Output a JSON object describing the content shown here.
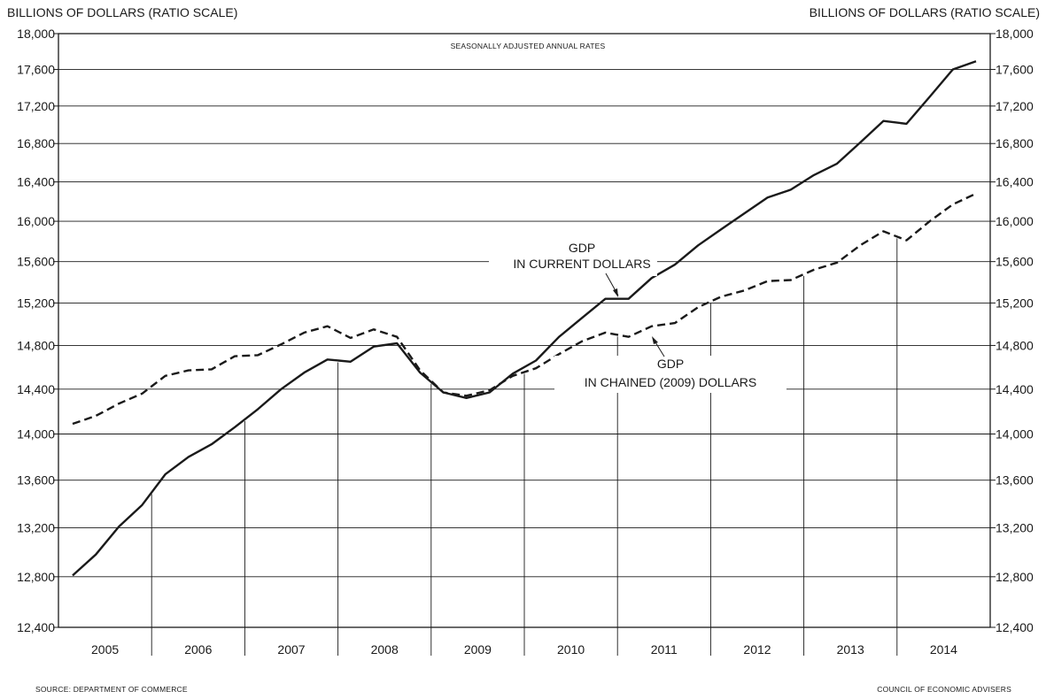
{
  "chart_data": {
    "type": "line",
    "ylabel_left": "BILLIONS OF DOLLARS (RATIO SCALE)",
    "ylabel_right": "BILLIONS OF DOLLARS (RATIO SCALE)",
    "subtitle": "SEASONALLY ADJUSTED ANNUAL RATES",
    "y_scale": "log",
    "ylim": [
      12400,
      18000
    ],
    "y_ticks": [
      12400,
      12800,
      13200,
      13600,
      14000,
      14400,
      14800,
      15200,
      15600,
      16000,
      16400,
      16800,
      17200,
      17600,
      18000
    ],
    "y_tick_labels": [
      "12,400",
      "12,800",
      "13,200",
      "13,600",
      "14,000",
      "14,400",
      "14,800",
      "15,200",
      "15,600",
      "16,000",
      "16,400",
      "16,800",
      "17,200",
      "17,600",
      "18,000"
    ],
    "categories": [
      "2005",
      "2006",
      "2007",
      "2008",
      "2009",
      "2010",
      "2011",
      "2012",
      "2013",
      "2014"
    ],
    "x": [
      "2005 Q1",
      "2005 Q2",
      "2005 Q3",
      "2005 Q4",
      "2006 Q1",
      "2006 Q2",
      "2006 Q3",
      "2006 Q4",
      "2007 Q1",
      "2007 Q2",
      "2007 Q3",
      "2007 Q4",
      "2008 Q1",
      "2008 Q2",
      "2008 Q3",
      "2008 Q4",
      "2009 Q1",
      "2009 Q2",
      "2009 Q3",
      "2009 Q4",
      "2010 Q1",
      "2010 Q2",
      "2010 Q3",
      "2010 Q4",
      "2011 Q1",
      "2011 Q2",
      "2011 Q3",
      "2011 Q4",
      "2012 Q1",
      "2012 Q2",
      "2012 Q3",
      "2012 Q4",
      "2013 Q1",
      "2013 Q2",
      "2013 Q3",
      "2013 Q4",
      "2014 Q1",
      "2014 Q2",
      "2014 Q3",
      "2014 Q4"
    ],
    "series": [
      {
        "name": "GDP IN CURRENT DOLLARS",
        "label_lines": [
          "GDP",
          "IN CURRENT DOLLARS"
        ],
        "style": "solid",
        "values": [
          12810,
          12980,
          13210,
          13390,
          13650,
          13800,
          13910,
          14060,
          14220,
          14400,
          14550,
          14670,
          14650,
          14790,
          14820,
          14550,
          14370,
          14320,
          14370,
          14540,
          14660,
          14880,
          15060,
          15240,
          15240,
          15440,
          15570,
          15760,
          15920,
          16080,
          16240,
          16320,
          16470,
          16590,
          16810,
          17040,
          17010,
          17300,
          17600,
          17690
        ]
      },
      {
        "name": "GDP IN CHAINED (2009) DOLLARS",
        "label_lines": [
          "GDP",
          "IN CHAINED (2009) DOLLARS"
        ],
        "style": "dashed",
        "values": [
          14090,
          14160,
          14270,
          14360,
          14520,
          14570,
          14580,
          14700,
          14710,
          14810,
          14920,
          14980,
          14870,
          14950,
          14880,
          14570,
          14370,
          14340,
          14390,
          14520,
          14590,
          14720,
          14840,
          14920,
          14880,
          14980,
          15010,
          15160,
          15260,
          15320,
          15410,
          15420,
          15520,
          15590,
          15760,
          15900,
          15810,
          16000,
          16170,
          16280
        ]
      }
    ],
    "grid": true,
    "legend": "inline-labels"
  },
  "footer": {
    "source": "SOURCE: DEPARTMENT OF COMMERCE",
    "credit": "COUNCIL OF ECONOMIC ADVISERS"
  }
}
